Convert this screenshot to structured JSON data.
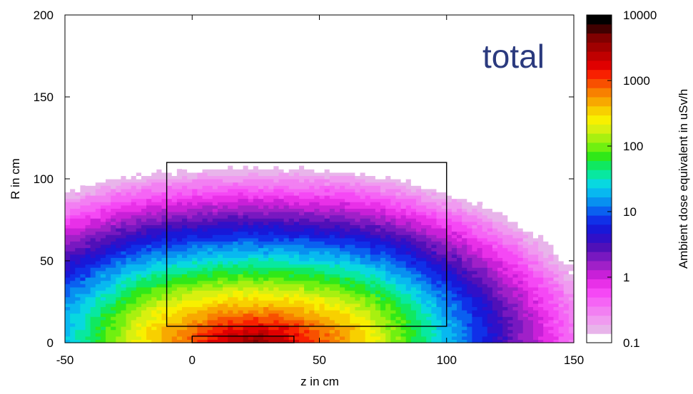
{
  "chart_data": {
    "type": "heatmap",
    "title": "",
    "overlay_label": "total",
    "xlabel": "z in cm",
    "ylabel": "R in cm",
    "xlim": [
      -50,
      150
    ],
    "ylim": [
      0,
      200
    ],
    "x_ticks": [
      "-50",
      "0",
      "50",
      "100",
      "150"
    ],
    "y_ticks": [
      "0",
      "50",
      "100",
      "150",
      "200"
    ],
    "colorbar": {
      "label": "Ambient dose equivalent in uSv/h",
      "scale": "log",
      "range": [
        0.1,
        10000
      ],
      "ticks": [
        "0.1",
        "1",
        "10",
        "100",
        "1000",
        "10000"
      ],
      "colors": [
        "#ffffff",
        "#e8b4ea",
        "#f09af0",
        "#f27ff2",
        "#f564f5",
        "#f548f5",
        "#e830e8",
        "#c820d8",
        "#a020c8",
        "#7818c0",
        "#5010b8",
        "#3010c8",
        "#1818d8",
        "#1030e8",
        "#0a60f0",
        "#0890f0",
        "#08b8f0",
        "#08d8e0",
        "#08e8a0",
        "#10e860",
        "#30e818",
        "#70f010",
        "#a8f010",
        "#d8f010",
        "#f8f000",
        "#f8d000",
        "#f8a800",
        "#f88000",
        "#f85000",
        "#f82000",
        "#e00000",
        "#c00000",
        "#a00000",
        "#800000",
        "#400000",
        "#000000"
      ]
    },
    "dose_model": {
      "description": "Ambient dose equivalent map; peak near z=25 cm, R=0 with radial falloff, step at shield boundary",
      "peak_log10": 3.6,
      "peak_z": 25
    },
    "regions": [
      {
        "name": "shield-box",
        "z": [
          -10,
          100
        ],
        "R": [
          10,
          110
        ]
      },
      {
        "name": "source-box",
        "z": [
          0,
          40
        ],
        "R": [
          0,
          4
        ]
      }
    ]
  }
}
